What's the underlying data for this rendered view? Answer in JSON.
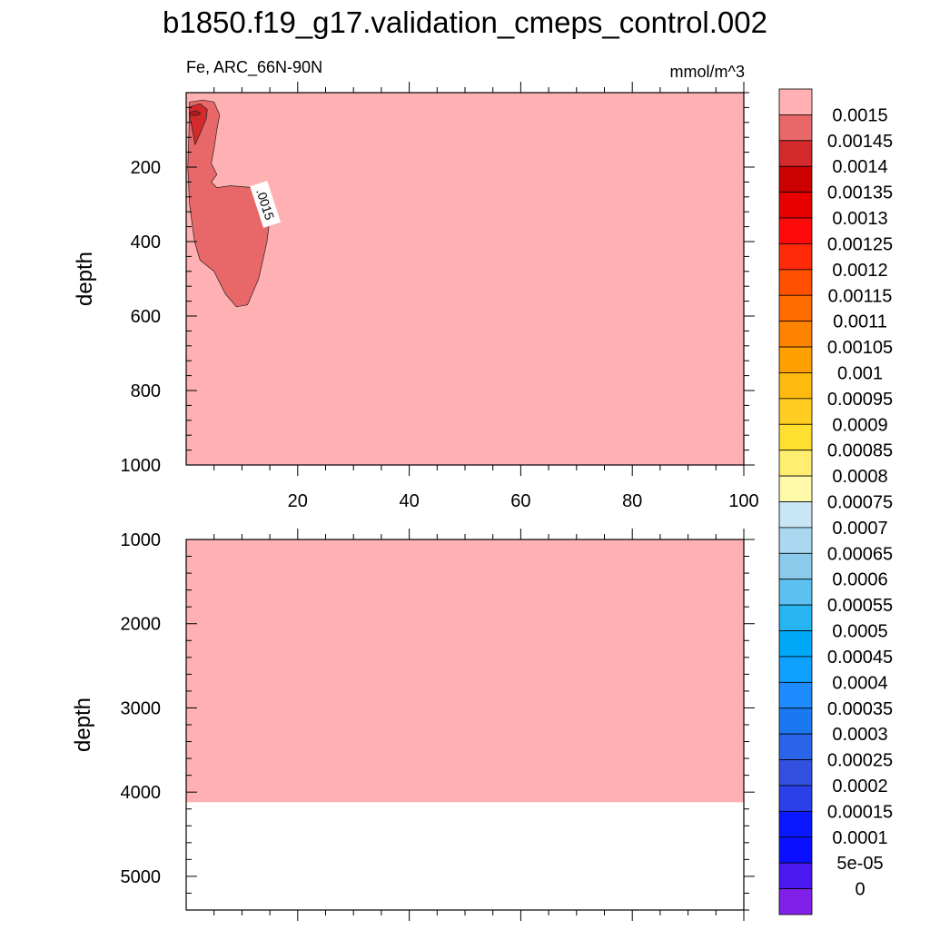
{
  "chart_data": {
    "type": "contour",
    "title": "b1850.f19_g17.validation_cmeps_control.002",
    "left_label": "Fe, ARC_66N-90N",
    "units_label": "mmol/m^3",
    "contour_label": ".0015",
    "panels": [
      {
        "name": "upper",
        "ylabel": "depth",
        "xlim": [
          0,
          100
        ],
        "ylim": [
          1000,
          0
        ],
        "xticks": [
          20,
          40,
          60,
          80,
          100
        ],
        "xtick_labels": [
          "20",
          "40",
          "60",
          "80",
          "100"
        ],
        "yticks": [
          200,
          400,
          600,
          800,
          1000
        ],
        "ytick_labels": [
          "200",
          "400",
          "600",
          "800",
          "1000"
        ],
        "background_level": "> 0.0015",
        "background_color": "#feb0b2",
        "features": [
          {
            "level": "0.00145 - 0.0015",
            "color": "#e8686a",
            "outline": [
              [
                0.6,
                25
              ],
              [
                3,
                20
              ],
              [
                5,
                25
              ],
              [
                6,
                60
              ],
              [
                5.5,
                100
              ],
              [
                5,
                150
              ],
              [
                4.5,
                190
              ],
              [
                5.5,
                220
              ],
              [
                4.5,
                240
              ],
              [
                5.5,
                255
              ],
              [
                8,
                250
              ],
              [
                12,
                255
              ],
              [
                15,
                265
              ],
              [
                15.3,
                300
              ],
              [
                14.5,
                400
              ],
              [
                13,
                500
              ],
              [
                11,
                570
              ],
              [
                9,
                575
              ],
              [
                7,
                540
              ],
              [
                5,
                480
              ],
              [
                2.5,
                450
              ],
              [
                1.5,
                400
              ],
              [
                0.6,
                300
              ],
              [
                0.3,
                200
              ],
              [
                0.5,
                100
              ]
            ]
          },
          {
            "level": "0.0014 - 0.00145",
            "color": "#d42a2c",
            "outline": [
              [
                0.6,
                38
              ],
              [
                2.5,
                30
              ],
              [
                3.8,
                45
              ],
              [
                3.6,
                70
              ],
              [
                2.5,
                110
              ],
              [
                1.6,
                140
              ],
              [
                1,
                90
              ],
              [
                0.6,
                60
              ]
            ]
          },
          {
            "level": "0.00135 - 0.0014",
            "color": "#b01a1c",
            "outline": [
              [
                0.8,
                52
              ],
              [
                1.8,
                48
              ],
              [
                2.6,
                56
              ],
              [
                1.8,
                62
              ],
              [
                0.8,
                60
              ]
            ]
          }
        ]
      },
      {
        "name": "lower",
        "ylabel": "depth",
        "xlim": [
          0,
          100
        ],
        "ylim": [
          5400,
          1000
        ],
        "xticks": [
          20,
          40,
          60,
          80,
          100
        ],
        "yticks": [
          1000,
          2000,
          3000,
          4000,
          5000
        ],
        "ytick_labels": [
          "1000",
          "2000",
          "3000",
          "4000",
          "5000"
        ],
        "background_level": "> 0.0015",
        "background_color": "#feb0b2",
        "missing_below_depth": 4120
      }
    ],
    "colorbar": {
      "labels": [
        "0.0015",
        "0.00145",
        "0.0014",
        "0.00135",
        "0.0013",
        "0.00125",
        "0.0012",
        "0.00115",
        "0.0011",
        "0.00105",
        "0.001",
        "0.00095",
        "0.0009",
        "0.00085",
        "0.0008",
        "0.00075",
        "0.0007",
        "0.00065",
        "0.0006",
        "0.00055",
        "0.0005",
        "0.00045",
        "0.0004",
        "0.00035",
        "0.0003",
        "0.00025",
        "0.0002",
        "0.00015",
        "0.0001",
        "5e-05",
        "0"
      ],
      "colors": [
        "#feb0b2",
        "#e8686a",
        "#d42a2c",
        "#cc0000",
        "#e80000",
        "#ff0a0a",
        "#ff2a0a",
        "#ff5000",
        "#ff6c00",
        "#ff8200",
        "#ffa000",
        "#ffba10",
        "#ffcc22",
        "#ffe030",
        "#ffee70",
        "#fff9aa",
        "#c8e6f5",
        "#aad8f0",
        "#8ccaec",
        "#5cc0f0",
        "#28b4f0",
        "#00a8f8",
        "#10a0ff",
        "#1e8cff",
        "#1a78f0",
        "#2a64e8",
        "#3250e0",
        "#2a40e8",
        "#0a18ff",
        "#0a10ff",
        "#4a1af0",
        "#8020e8"
      ]
    }
  }
}
